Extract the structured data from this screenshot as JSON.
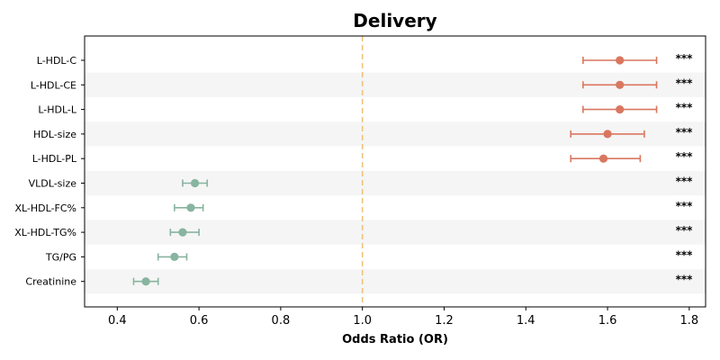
{
  "chart_data": {
    "type": "forest",
    "title": "Delivery",
    "xlabel": "Odds Ratio (OR)",
    "xlim": [
      0.32,
      1.84
    ],
    "xticks": [
      0.4,
      0.6,
      0.8,
      1.0,
      1.2,
      1.4,
      1.6,
      1.8
    ],
    "xtick_labels": [
      "0.4",
      "0.6",
      "0.8",
      "1.0",
      "1.2",
      "1.4",
      "1.6",
      "1.8"
    ],
    "reference_line": 1.0,
    "grid": false,
    "alternating_row_shading": true,
    "colors": {
      "positive": "#d9775f",
      "negative": "#88b4a0",
      "reference_line": "#f0c27b",
      "row_shade": "#f5f5f5"
    },
    "rows": [
      {
        "label": "L-HDL-C",
        "or": 1.63,
        "ci_low": 1.54,
        "ci_high": 1.72,
        "sig": "***"
      },
      {
        "label": "L-HDL-CE",
        "or": 1.63,
        "ci_low": 1.54,
        "ci_high": 1.72,
        "sig": "***"
      },
      {
        "label": "L-HDL-L",
        "or": 1.63,
        "ci_low": 1.54,
        "ci_high": 1.72,
        "sig": "***"
      },
      {
        "label": "HDL-size",
        "or": 1.6,
        "ci_low": 1.51,
        "ci_high": 1.69,
        "sig": "***"
      },
      {
        "label": "L-HDL-PL",
        "or": 1.59,
        "ci_low": 1.51,
        "ci_high": 1.68,
        "sig": "***"
      },
      {
        "label": "VLDL-size",
        "or": 0.59,
        "ci_low": 0.56,
        "ci_high": 0.62,
        "sig": "***"
      },
      {
        "label": "XL-HDL-FC%",
        "or": 0.58,
        "ci_low": 0.54,
        "ci_high": 0.61,
        "sig": "***"
      },
      {
        "label": "XL-HDL-TG%",
        "or": 0.56,
        "ci_low": 0.53,
        "ci_high": 0.6,
        "sig": "***"
      },
      {
        "label": "TG/PG",
        "or": 0.54,
        "ci_low": 0.5,
        "ci_high": 0.57,
        "sig": "***"
      },
      {
        "label": "Creatinine",
        "or": 0.47,
        "ci_low": 0.44,
        "ci_high": 0.5,
        "sig": "***"
      }
    ]
  }
}
